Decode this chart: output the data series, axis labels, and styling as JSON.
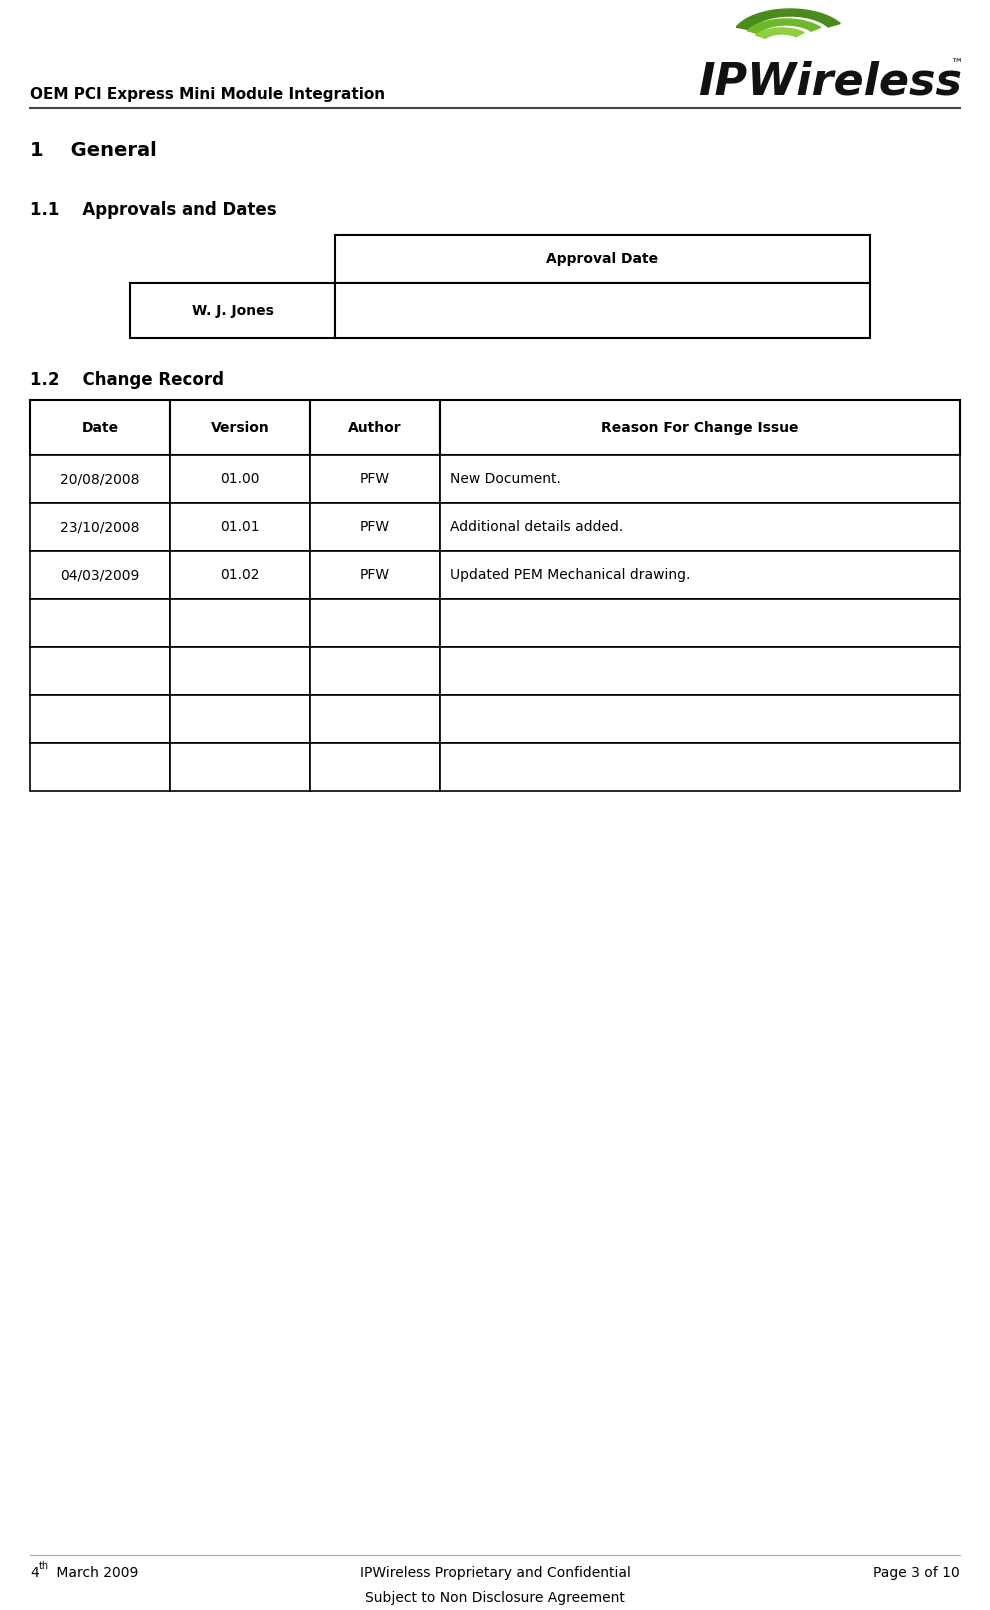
{
  "title_left": "OEM PCI Express Mini Module Integration",
  "logo_tm": "™",
  "section1_title": "1    General",
  "section11_title": "1.1    Approvals and Dates",
  "approval_table_header": "Approval Date",
  "approval_row_name": "W. J. Jones",
  "section12_title": "1.2    Change Record",
  "change_table_headers": [
    "Date",
    "Version",
    "Author",
    "Reason For Change Issue"
  ],
  "change_table_rows": [
    [
      "20/08/2008",
      "01.00",
      "PFW",
      "New Document."
    ],
    [
      "23/10/2008",
      "01.01",
      "PFW",
      "Additional details added."
    ],
    [
      "04/03/2009",
      "01.02",
      "PFW",
      "Updated PEM Mechanical drawing."
    ],
    [
      "",
      "",
      "",
      ""
    ],
    [
      "",
      "",
      "",
      ""
    ],
    [
      "",
      "",
      "",
      ""
    ],
    [
      "",
      "",
      "",
      ""
    ]
  ],
  "footer_center": "IPWireless Proprietary and Confidential",
  "footer_right": "Page 3 of 10",
  "footer_sub": "Subject to Non Disclosure Agreement",
  "bg_color": "#ffffff",
  "text_color": "#000000",
  "header_line_color": "#444444",
  "logo_green1": "#4a8c1c",
  "logo_green2": "#6db82a",
  "logo_green3": "#8fd040"
}
